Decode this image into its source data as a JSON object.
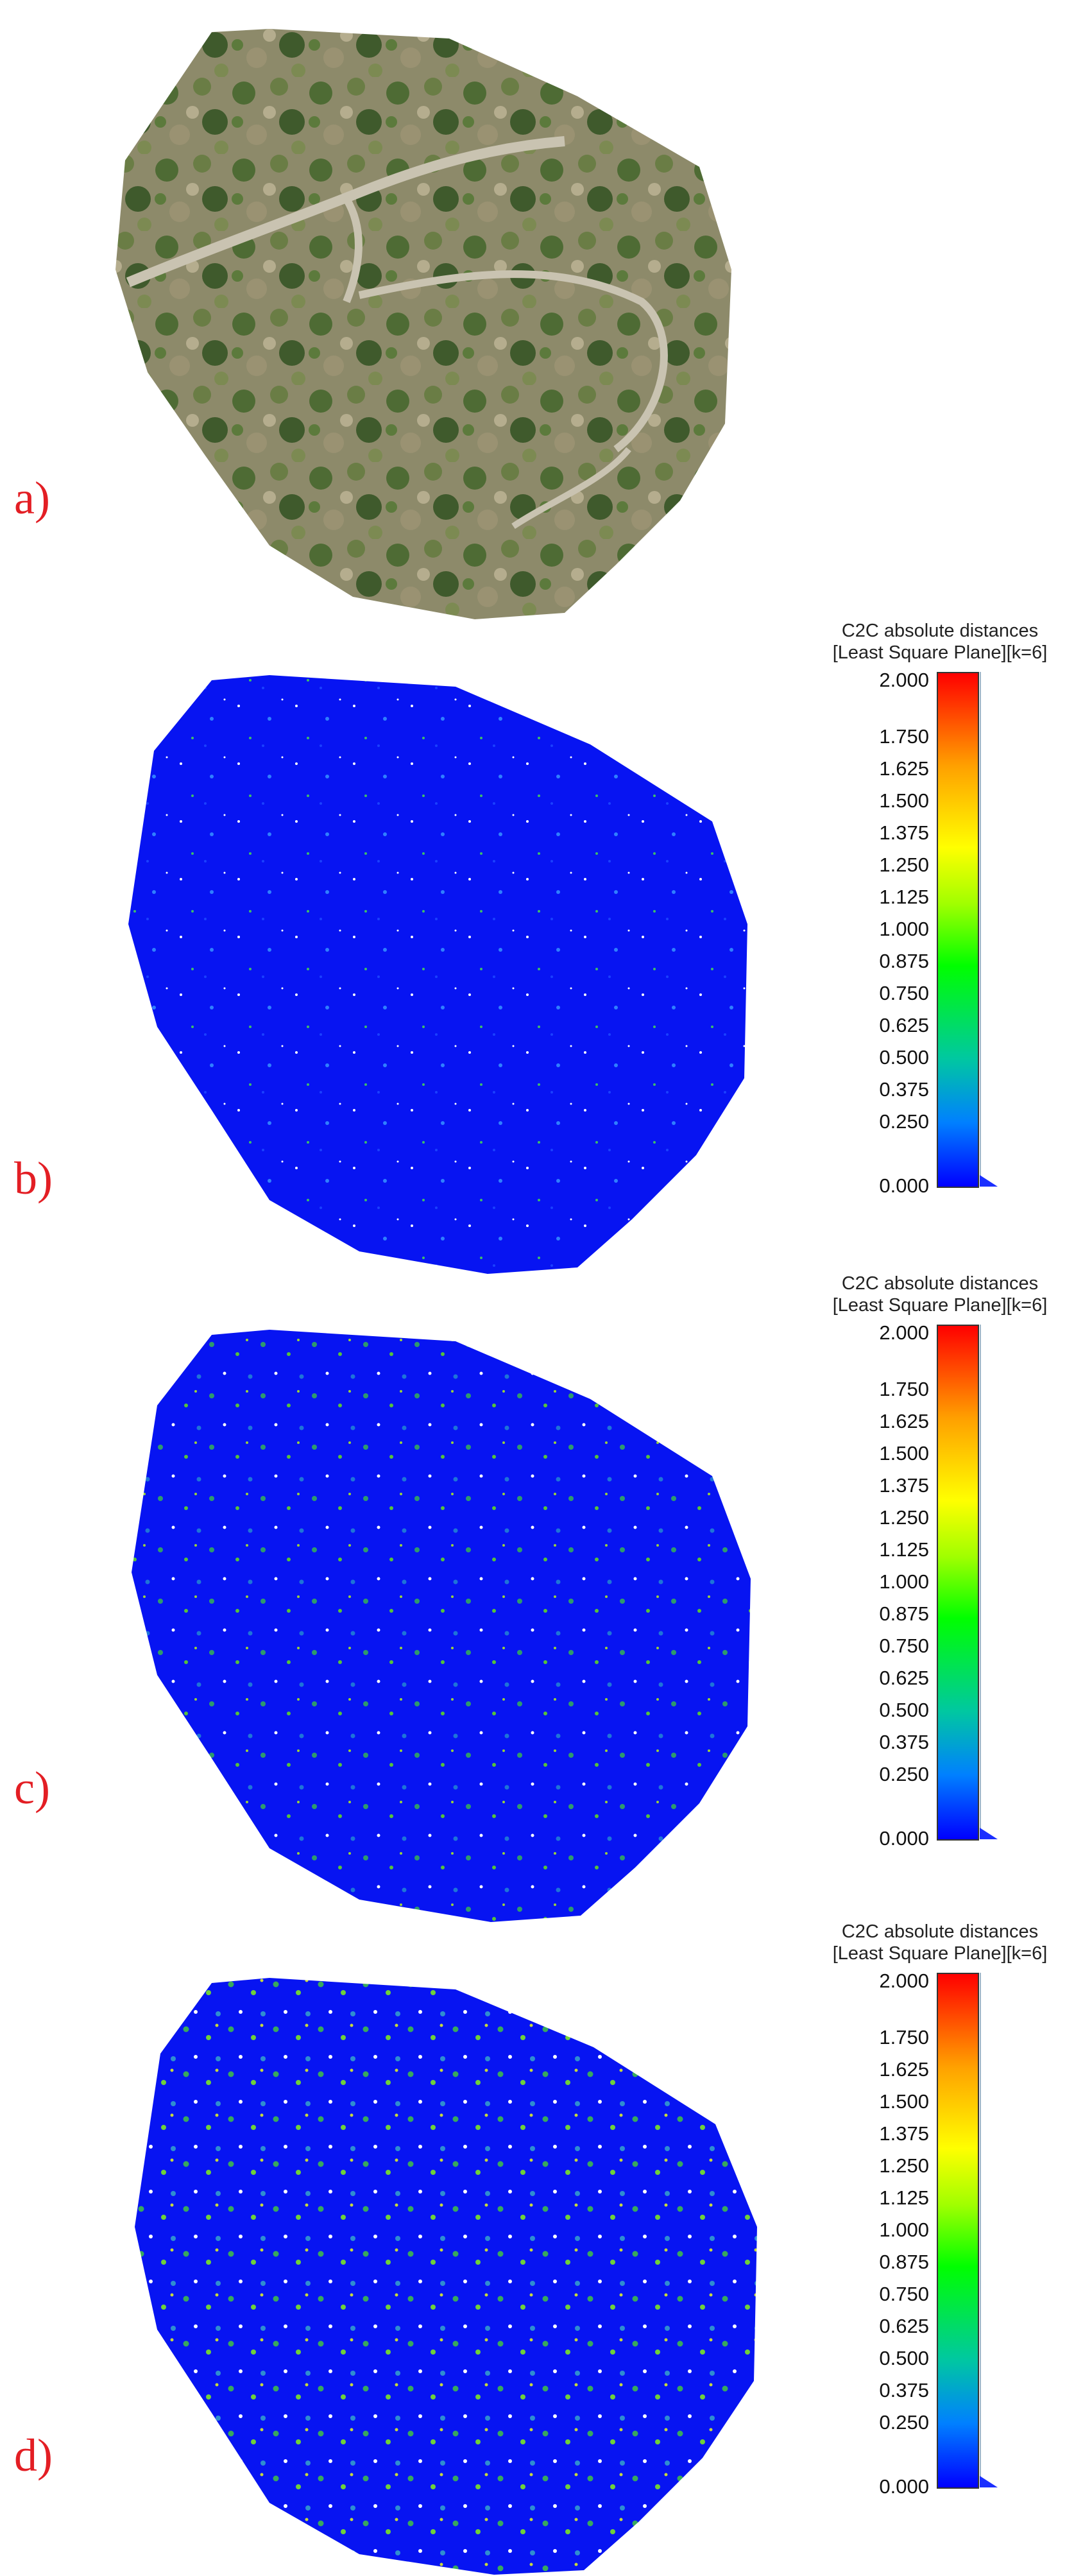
{
  "panels": [
    {
      "id": "a",
      "label": "a)"
    },
    {
      "id": "b",
      "label": "b)"
    },
    {
      "id": "c",
      "label": "c)"
    },
    {
      "id": "d",
      "label": "d)"
    }
  ],
  "legend": {
    "title_line1": "C2C absolute distances",
    "title_line2": "[Least Square Plane][k=6]",
    "ticks": [
      "2.000",
      "1.750",
      "1.625",
      "1.500",
      "1.375",
      "1.250",
      "1.125",
      "1.000",
      "0.875",
      "0.750",
      "0.625",
      "0.500",
      "0.375",
      "0.250",
      "0.000"
    ],
    "tick_values": [
      2.0,
      1.75,
      1.625,
      1.5,
      1.375,
      1.25,
      1.125,
      1.0,
      0.875,
      0.75,
      0.625,
      0.5,
      0.375,
      0.25,
      0.0
    ],
    "colors": {
      "low": "#0000ff",
      "mid": "#00ff00",
      "high_mid": "#ffff00",
      "high": "#ff0000"
    }
  },
  "colors": {
    "label": "#e31e24",
    "distance_map_base": "#0a14f0"
  }
}
